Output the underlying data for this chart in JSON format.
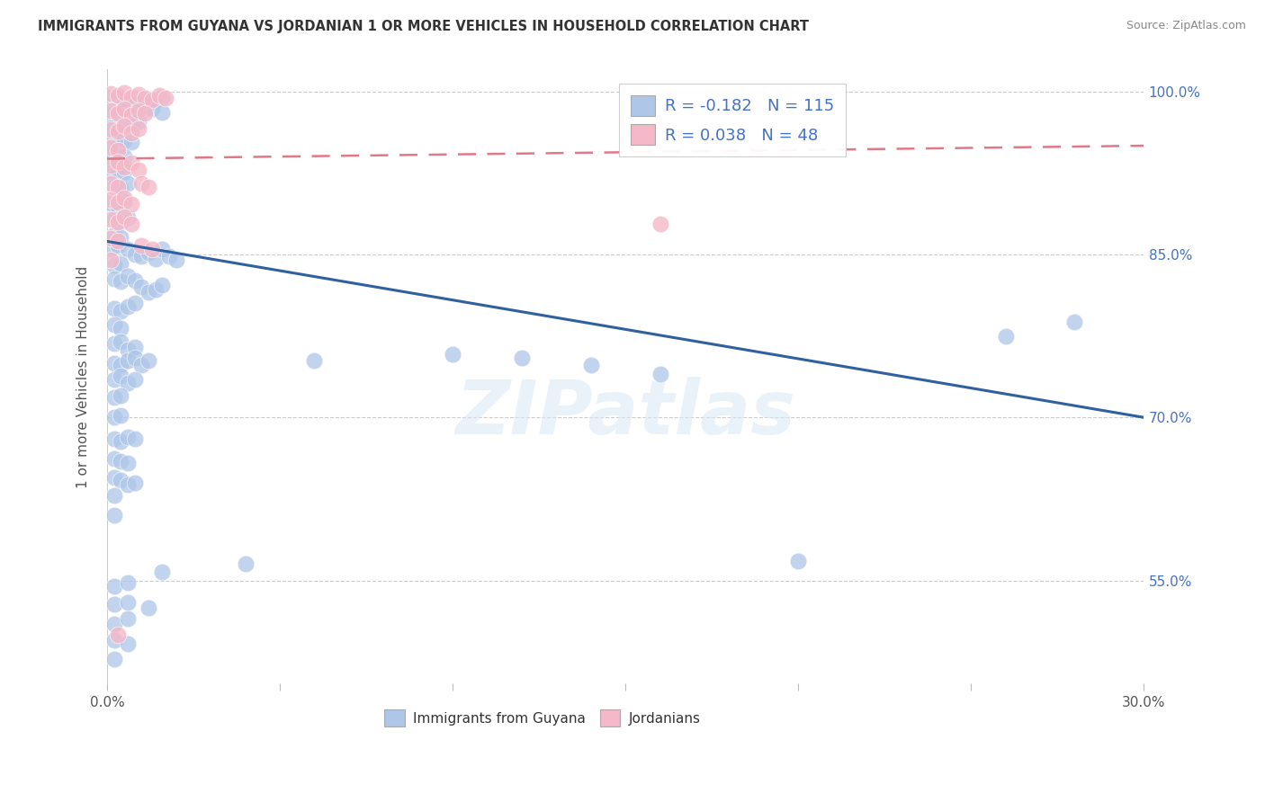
{
  "title": "IMMIGRANTS FROM GUYANA VS JORDANIAN 1 OR MORE VEHICLES IN HOUSEHOLD CORRELATION CHART",
  "source": "Source: ZipAtlas.com",
  "ylabel": "1 or more Vehicles in Household",
  "legend1_label": "Immigrants from Guyana",
  "legend2_label": "Jordanians",
  "r1": -0.182,
  "n1": 115,
  "r2": 0.038,
  "n2": 48,
  "blue_color": "#aec6e8",
  "pink_color": "#f4b8c8",
  "line_blue": "#3060a0",
  "line_pink": "#e07888",
  "watermark_text": "ZIPatlas",
  "blue_scatter": [
    [
      0.001,
      0.995
    ],
    [
      0.003,
      0.993
    ],
    [
      0.005,
      0.992
    ],
    [
      0.007,
      0.99
    ],
    [
      0.008,
      0.988
    ],
    [
      0.01,
      0.987
    ],
    [
      0.012,
      0.993
    ],
    [
      0.014,
      0.991
    ],
    [
      0.016,
      0.995
    ],
    [
      0.001,
      0.98
    ],
    [
      0.003,
      0.978
    ],
    [
      0.005,
      0.982
    ],
    [
      0.007,
      0.979
    ],
    [
      0.009,
      0.985
    ],
    [
      0.011,
      0.983
    ],
    [
      0.013,
      0.984
    ],
    [
      0.016,
      0.981
    ],
    [
      0.001,
      0.967
    ],
    [
      0.003,
      0.965
    ],
    [
      0.005,
      0.97
    ],
    [
      0.007,
      0.968
    ],
    [
      0.009,
      0.972
    ],
    [
      0.001,
      0.952
    ],
    [
      0.003,
      0.95
    ],
    [
      0.005,
      0.955
    ],
    [
      0.007,
      0.953
    ],
    [
      0.001,
      0.938
    ],
    [
      0.003,
      0.942
    ],
    [
      0.005,
      0.94
    ],
    [
      0.001,
      0.925
    ],
    [
      0.003,
      0.928
    ],
    [
      0.005,
      0.926
    ],
    [
      0.002,
      0.912
    ],
    [
      0.004,
      0.91
    ],
    [
      0.006,
      0.915
    ],
    [
      0.001,
      0.897
    ],
    [
      0.003,
      0.895
    ],
    [
      0.005,
      0.899
    ],
    [
      0.002,
      0.882
    ],
    [
      0.004,
      0.88
    ],
    [
      0.006,
      0.884
    ],
    [
      0.002,
      0.868
    ],
    [
      0.004,
      0.866
    ],
    [
      0.001,
      0.855
    ],
    [
      0.003,
      0.858
    ],
    [
      0.002,
      0.84
    ],
    [
      0.004,
      0.842
    ],
    [
      0.006,
      0.855
    ],
    [
      0.008,
      0.85
    ],
    [
      0.01,
      0.848
    ],
    [
      0.012,
      0.852
    ],
    [
      0.014,
      0.846
    ],
    [
      0.016,
      0.855
    ],
    [
      0.018,
      0.848
    ],
    [
      0.02,
      0.845
    ],
    [
      0.002,
      0.828
    ],
    [
      0.004,
      0.825
    ],
    [
      0.006,
      0.83
    ],
    [
      0.008,
      0.826
    ],
    [
      0.01,
      0.82
    ],
    [
      0.012,
      0.815
    ],
    [
      0.014,
      0.818
    ],
    [
      0.016,
      0.822
    ],
    [
      0.002,
      0.8
    ],
    [
      0.004,
      0.798
    ],
    [
      0.006,
      0.802
    ],
    [
      0.008,
      0.805
    ],
    [
      0.002,
      0.785
    ],
    [
      0.004,
      0.782
    ],
    [
      0.002,
      0.768
    ],
    [
      0.004,
      0.77
    ],
    [
      0.006,
      0.762
    ],
    [
      0.008,
      0.765
    ],
    [
      0.002,
      0.75
    ],
    [
      0.004,
      0.748
    ],
    [
      0.006,
      0.752
    ],
    [
      0.008,
      0.755
    ],
    [
      0.01,
      0.748
    ],
    [
      0.012,
      0.752
    ],
    [
      0.002,
      0.735
    ],
    [
      0.004,
      0.738
    ],
    [
      0.006,
      0.732
    ],
    [
      0.008,
      0.735
    ],
    [
      0.002,
      0.718
    ],
    [
      0.004,
      0.72
    ],
    [
      0.002,
      0.7
    ],
    [
      0.004,
      0.702
    ],
    [
      0.06,
      0.752
    ],
    [
      0.1,
      0.758
    ],
    [
      0.12,
      0.755
    ],
    [
      0.14,
      0.748
    ],
    [
      0.16,
      0.74
    ],
    [
      0.002,
      0.68
    ],
    [
      0.004,
      0.678
    ],
    [
      0.006,
      0.682
    ],
    [
      0.008,
      0.68
    ],
    [
      0.002,
      0.662
    ],
    [
      0.004,
      0.66
    ],
    [
      0.006,
      0.658
    ],
    [
      0.002,
      0.645
    ],
    [
      0.004,
      0.642
    ],
    [
      0.006,
      0.638
    ],
    [
      0.008,
      0.64
    ],
    [
      0.002,
      0.628
    ],
    [
      0.002,
      0.61
    ],
    [
      0.04,
      0.565
    ],
    [
      0.016,
      0.558
    ],
    [
      0.002,
      0.545
    ],
    [
      0.006,
      0.548
    ],
    [
      0.002,
      0.528
    ],
    [
      0.006,
      0.53
    ],
    [
      0.012,
      0.525
    ],
    [
      0.002,
      0.51
    ],
    [
      0.006,
      0.515
    ],
    [
      0.002,
      0.495
    ],
    [
      0.006,
      0.492
    ],
    [
      0.002,
      0.478
    ],
    [
      0.2,
      0.568
    ],
    [
      0.26,
      0.775
    ],
    [
      0.28,
      0.788
    ]
  ],
  "pink_scatter": [
    [
      0.001,
      0.998
    ],
    [
      0.003,
      0.996
    ],
    [
      0.005,
      0.999
    ],
    [
      0.007,
      0.995
    ],
    [
      0.009,
      0.997
    ],
    [
      0.011,
      0.994
    ],
    [
      0.013,
      0.992
    ],
    [
      0.015,
      0.996
    ],
    [
      0.017,
      0.994
    ],
    [
      0.001,
      0.982
    ],
    [
      0.003,
      0.98
    ],
    [
      0.005,
      0.984
    ],
    [
      0.007,
      0.978
    ],
    [
      0.009,
      0.982
    ],
    [
      0.011,
      0.98
    ],
    [
      0.001,
      0.965
    ],
    [
      0.003,
      0.963
    ],
    [
      0.005,
      0.968
    ],
    [
      0.007,
      0.962
    ],
    [
      0.009,
      0.966
    ],
    [
      0.001,
      0.948
    ],
    [
      0.003,
      0.946
    ],
    [
      0.001,
      0.932
    ],
    [
      0.003,
      0.935
    ],
    [
      0.005,
      0.93
    ],
    [
      0.007,
      0.934
    ],
    [
      0.009,
      0.928
    ],
    [
      0.001,
      0.915
    ],
    [
      0.003,
      0.912
    ],
    [
      0.001,
      0.9
    ],
    [
      0.003,
      0.898
    ],
    [
      0.005,
      0.902
    ],
    [
      0.007,
      0.896
    ],
    [
      0.01,
      0.915
    ],
    [
      0.012,
      0.912
    ],
    [
      0.001,
      0.882
    ],
    [
      0.003,
      0.88
    ],
    [
      0.005,
      0.885
    ],
    [
      0.007,
      0.878
    ],
    [
      0.01,
      0.858
    ],
    [
      0.013,
      0.855
    ],
    [
      0.001,
      0.865
    ],
    [
      0.003,
      0.862
    ],
    [
      0.001,
      0.845
    ],
    [
      0.16,
      0.878
    ],
    [
      0.003,
      0.5
    ]
  ],
  "blue_line_x": [
    0.0,
    0.3
  ],
  "blue_line_y": [
    0.862,
    0.7
  ],
  "pink_line_x": [
    0.0,
    0.3
  ],
  "pink_line_y": [
    0.938,
    0.95
  ],
  "xlim": [
    0.0,
    0.3
  ],
  "ylim": [
    0.455,
    1.02
  ],
  "ytick_values": [
    1.0,
    0.85,
    0.7,
    0.55
  ],
  "ytick_labels": [
    "100.0%",
    "85.0%",
    "70.0%",
    "55.0%"
  ],
  "ybottom_label": "30.0%",
  "ybottom_val": 0.455
}
